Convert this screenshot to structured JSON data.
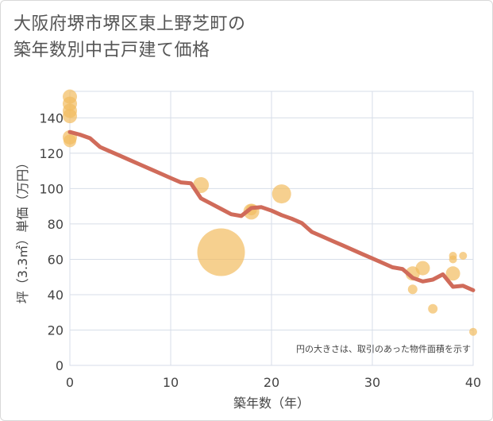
{
  "title_lines": [
    "大阪府堺市堺区東上野芝町の",
    "築年数別中古戸建て価格"
  ],
  "chart_data": {
    "type": "scatter",
    "title": "大阪府堺市堺区東上野芝町の築年数別中古戸建て価格",
    "xlabel": "築年数（年）",
    "ylabel": "坪（3.3㎡）単価（万円）",
    "xlim": [
      0,
      40
    ],
    "ylim": [
      0,
      155
    ],
    "xticks": [
      0,
      10,
      20,
      30,
      40
    ],
    "yticks": [
      0,
      20,
      40,
      60,
      80,
      100,
      120,
      140
    ],
    "grid": true,
    "note": "円の大きさは、取引のあった物件面積を示す",
    "colors": {
      "bubble": "#f2bc60",
      "trend": "#d06b5a",
      "grid": "#d7dee8",
      "plot_bg": "#ffffff"
    },
    "bubbles": [
      {
        "x": 0,
        "y": 152,
        "size": 9
      },
      {
        "x": 0,
        "y": 148,
        "size": 9
      },
      {
        "x": 0,
        "y": 144,
        "size": 9
      },
      {
        "x": 0,
        "y": 141,
        "size": 9
      },
      {
        "x": 0,
        "y": 129,
        "size": 9
      },
      {
        "x": 0,
        "y": 127,
        "size": 8
      },
      {
        "x": 13,
        "y": 102,
        "size": 10
      },
      {
        "x": 15,
        "y": 64,
        "size": 30
      },
      {
        "x": 18,
        "y": 87,
        "size": 10
      },
      {
        "x": 18,
        "y": 88,
        "size": 7
      },
      {
        "x": 21,
        "y": 97,
        "size": 12
      },
      {
        "x": 34,
        "y": 52,
        "size": 9
      },
      {
        "x": 34,
        "y": 43,
        "size": 6
      },
      {
        "x": 35,
        "y": 55,
        "size": 9
      },
      {
        "x": 36,
        "y": 32,
        "size": 6
      },
      {
        "x": 38,
        "y": 62,
        "size": 5
      },
      {
        "x": 38,
        "y": 60,
        "size": 5
      },
      {
        "x": 38,
        "y": 52,
        "size": 9
      },
      {
        "x": 39,
        "y": 62,
        "size": 5
      },
      {
        "x": 40,
        "y": 19,
        "size": 5
      }
    ],
    "trend": {
      "x": [
        0,
        1,
        2,
        3,
        4,
        5,
        6,
        7,
        8,
        9,
        10,
        11,
        12,
        13,
        14,
        15,
        16,
        17,
        18,
        19,
        20,
        21,
        22,
        23,
        24,
        25,
        26,
        27,
        28,
        29,
        30,
        31,
        32,
        33,
        34,
        35,
        36,
        37,
        38,
        39,
        40
      ],
      "y": [
        132,
        130.5,
        128.5,
        123.5,
        121,
        118.5,
        116,
        113.5,
        111,
        108.5,
        106,
        103.5,
        103,
        94.5,
        91.5,
        88.5,
        85.5,
        84.5,
        89,
        89.5,
        87.5,
        85,
        83,
        80.5,
        75.5,
        73,
        70.5,
        68,
        65.5,
        63,
        60.5,
        58,
        55.5,
        54.5,
        49.5,
        47.5,
        48.5,
        51.5,
        44.5,
        45,
        42.5
      ]
    }
  }
}
